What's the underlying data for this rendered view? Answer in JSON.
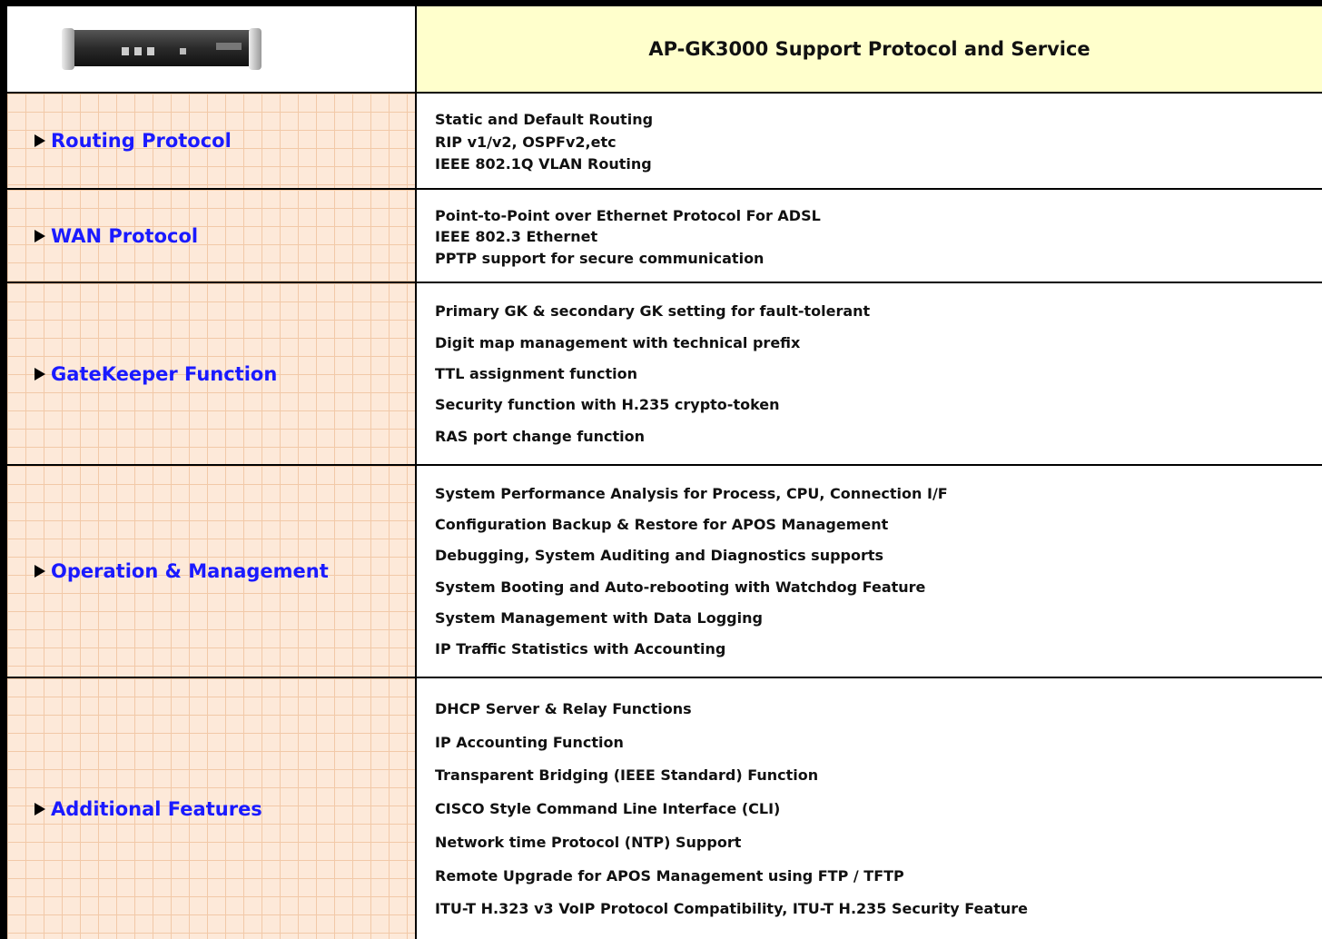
{
  "header": {
    "title": "AP-GK3000 Support Protocol and Service"
  },
  "sections": [
    {
      "label": "Routing Protocol",
      "items": [
        "Static and Default Routing",
        "RIP v1/v2, OSPFv2,etc",
        "IEEE 802.1Q VLAN Routing"
      ]
    },
    {
      "label": "WAN Protocol",
      "items": [
        "Point-to-Point over Ethernet Protocol For ADSL",
        "IEEE 802.3 Ethernet",
        "PPTP support for secure communication"
      ]
    },
    {
      "label": "GateKeeper Function",
      "items": [
        "Primary GK & secondary GK setting for fault-tolerant",
        "Digit map management with technical prefix",
        "TTL assignment function",
        "Security function with H.235 crypto-token",
        "RAS port change function"
      ]
    },
    {
      "label": "Operation & Management",
      "items": [
        "System Performance Analysis for Process, CPU, Connection I/F",
        "Configuration Backup & Restore for APOS Management",
        "Debugging, System Auditing and Diagnostics supports",
        "System Booting and Auto-rebooting with Watchdog Feature",
        "System Management with Data Logging",
        "IP Traffic Statistics with Accounting"
      ]
    },
    {
      "label": "Additional Features",
      "items": [
        "DHCP Server & Relay Functions",
        "IP Accounting Function",
        "Transparent Bridging (IEEE Standard) Function",
        "CISCO Style Command Line Interface (CLI)",
        "Network time Protocol (NTP) Support",
        "Remote Upgrade for APOS Management using FTP / TFTP",
        "ITU-T H.323 v3 VoIP Protocol Compatibility, ITU-T H.235 Security Feature"
      ]
    }
  ]
}
